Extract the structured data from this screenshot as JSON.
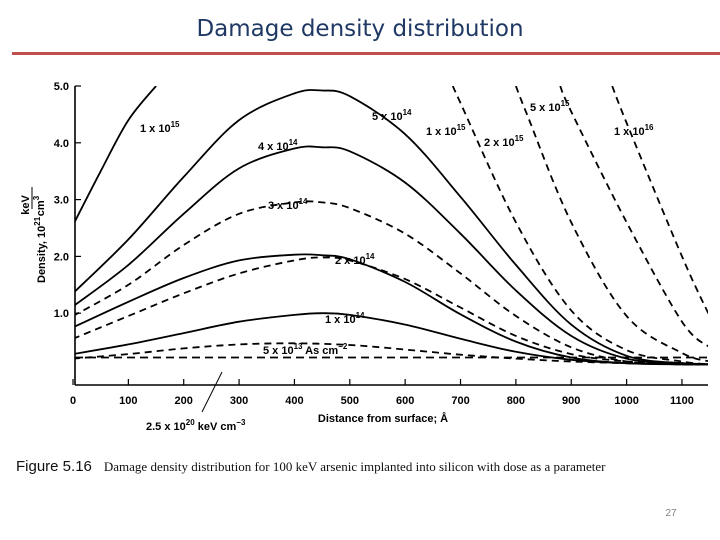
{
  "slide": {
    "title": "Damage density distribution",
    "page_number": "27"
  },
  "caption": {
    "figure_label": "Figure 5.16",
    "text": "Damage density distribution for 100 keV arsenic implanted into silicon with dose as a parameter"
  },
  "chart_data": {
    "type": "line",
    "xlabel": "Distance from surface; Å",
    "ylabel_main": "Density, 10",
    "ylabel_exp": "21",
    "ylabel_unit_num": "keV",
    "ylabel_unit_den": "cm",
    "ylabel_unit_den_exp": "3",
    "xlim": [
      0,
      1150
    ],
    "ylim": [
      0,
      5.0
    ],
    "x_ticks": [
      0,
      100,
      200,
      300,
      400,
      500,
      600,
      700,
      800,
      900,
      1000,
      1100
    ],
    "x_tick_labels": [
      "0",
      "100",
      "200",
      "300",
      "400",
      "500",
      "600",
      "700",
      "800",
      "900",
      "1000",
      "1100"
    ],
    "y_ticks": [
      1.0,
      2.0,
      3.0,
      4.0,
      5.0
    ],
    "y_tick_labels": [
      "1.0",
      "2.0",
      "3.0",
      "4.0",
      "5.0"
    ],
    "baseline_annotation": {
      "base": "2.5 x 10",
      "exp": "20",
      "unit": " keV cm",
      "unit_exp": "−3"
    },
    "series": [
      {
        "style": "dashed",
        "label": {
          "base": "5 x 10",
          "exp": "13",
          "suffix": " As cm",
          "suffix_exp": "−2"
        },
        "x": [
          0,
          100,
          200,
          300,
          400,
          500,
          600,
          700,
          800,
          900,
          1000,
          1100,
          1150
        ],
        "y": [
          0.2,
          0.28,
          0.38,
          0.45,
          0.47,
          0.44,
          0.36,
          0.27,
          0.2,
          0.15,
          0.12,
          0.1,
          0.1
        ]
      },
      {
        "style": "solid",
        "label": {
          "base": "1 x 10",
          "exp": "14"
        },
        "x": [
          0,
          100,
          200,
          300,
          400,
          450,
          500,
          600,
          700,
          800,
          900,
          1000,
          1100,
          1150
        ],
        "y": [
          0.28,
          0.45,
          0.65,
          0.85,
          0.97,
          1.0,
          0.97,
          0.8,
          0.55,
          0.32,
          0.18,
          0.12,
          0.1,
          0.1
        ]
      },
      {
        "style": "dashed",
        "label": null,
        "x": [
          0,
          100,
          200,
          300,
          400,
          450,
          500,
          600,
          700,
          800,
          900,
          1000,
          1100,
          1150
        ],
        "y": [
          0.55,
          0.95,
          1.35,
          1.7,
          1.93,
          1.98,
          1.93,
          1.6,
          1.1,
          0.6,
          0.28,
          0.15,
          0.1,
          0.1
        ]
      },
      {
        "style": "solid",
        "label": {
          "base": "2 x 10",
          "exp": "14"
        },
        "x": [
          0,
          100,
          200,
          300,
          400,
          450,
          500,
          600,
          700,
          800,
          900,
          1000,
          1100,
          1150
        ],
        "y": [
          0.75,
          1.2,
          1.62,
          1.93,
          2.03,
          2.02,
          1.95,
          1.55,
          0.98,
          0.5,
          0.22,
          0.12,
          0.1,
          0.1
        ]
      },
      {
        "style": "dashed",
        "label": {
          "base": "3 x 10",
          "exp": "14"
        },
        "x": [
          0,
          100,
          200,
          300,
          400,
          450,
          500,
          600,
          700,
          800,
          900,
          1000,
          1100,
          1150
        ],
        "y": [
          0.95,
          1.5,
          2.2,
          2.75,
          2.95,
          2.95,
          2.85,
          2.4,
          1.7,
          0.95,
          0.4,
          0.15,
          0.1,
          0.1
        ]
      },
      {
        "style": "solid",
        "label": {
          "base": "4 x 10",
          "exp": "14"
        },
        "x": [
          0,
          100,
          200,
          300,
          400,
          450,
          500,
          600,
          700,
          800,
          900,
          1000,
          1100,
          1150
        ],
        "y": [
          1.12,
          1.85,
          2.75,
          3.55,
          3.9,
          3.92,
          3.85,
          3.3,
          2.4,
          1.4,
          0.6,
          0.2,
          0.12,
          0.1
        ]
      },
      {
        "style": "solid",
        "label": {
          "base": "5 x 10",
          "exp": "14"
        },
        "x": [
          0,
          100,
          200,
          300,
          400,
          450,
          500,
          600,
          700,
          800,
          900,
          1000,
          1100,
          1150
        ],
        "y": [
          1.35,
          2.3,
          3.4,
          4.4,
          4.87,
          4.92,
          4.82,
          4.15,
          3.05,
          1.85,
          0.8,
          0.25,
          0.12,
          0.1
        ]
      },
      {
        "style": "dashed",
        "label": {
          "base": "1 x 10",
          "exp": "15"
        },
        "x": [
          686,
          700,
          800,
          900,
          1000,
          1100,
          1150
        ],
        "y": [
          5.0,
          4.7,
          2.6,
          1.05,
          0.35,
          0.15,
          0.1
        ]
      },
      {
        "style": "dashed",
        "label": {
          "base": "2 x 10",
          "exp": "15"
        },
        "x": [
          800,
          820,
          900,
          1000,
          1100,
          1150
        ],
        "y": [
          5.0,
          4.5,
          2.6,
          0.95,
          0.3,
          0.15
        ]
      },
      {
        "style": "dashed",
        "label": {
          "base": "5 x 10",
          "exp": "15"
        },
        "x": [
          880,
          900,
          1000,
          1100,
          1150
        ],
        "y": [
          5.0,
          4.55,
          2.6,
          0.85,
          0.4
        ]
      },
      {
        "style": "dashed",
        "label": {
          "base": "1 x 10",
          "exp": "16"
        },
        "x": [
          974,
          1000,
          1100,
          1150
        ],
        "y": [
          5.0,
          4.35,
          2.0,
          0.95
        ]
      },
      {
        "style": "solid",
        "label": {
          "base": "1 x 10",
          "exp": "15"
        },
        "x": [
          0,
          50,
          100,
          150
        ],
        "y": [
          2.55,
          3.5,
          4.4,
          5.0
        ]
      }
    ]
  }
}
